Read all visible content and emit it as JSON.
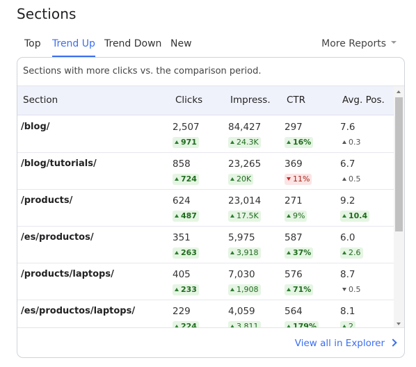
{
  "title": "Sections",
  "tabs": [
    {
      "label": "Top",
      "active": false
    },
    {
      "label": "Trend Up",
      "active": true
    },
    {
      "label": "Trend Down",
      "active": false
    },
    {
      "label": "New",
      "active": false
    }
  ],
  "more_reports_label": "More Reports",
  "description": "Sections with more clicks vs. the comparison period.",
  "columns": {
    "section": "Section",
    "clicks": "Clicks",
    "impressions": "Impress.",
    "ctr": "CTR",
    "position": "Avg. Pos."
  },
  "rows": [
    {
      "section": "/blog/",
      "clicks": "2,507",
      "clicks_delta": "971",
      "impressions": "84,427",
      "impressions_delta": "24.3K",
      "ctr": "297",
      "ctr_delta": "16%",
      "ctr_trend": "up",
      "position": "7.6",
      "position_delta": "0.3",
      "position_trend": "neutral-up"
    },
    {
      "section": "/blog/tutorials/",
      "clicks": "858",
      "clicks_delta": "724",
      "impressions": "23,265",
      "impressions_delta": "20K",
      "ctr": "369",
      "ctr_delta": "11%",
      "ctr_trend": "down",
      "position": "6.7",
      "position_delta": "0.5",
      "position_trend": "neutral-up"
    },
    {
      "section": "/products/",
      "clicks": "624",
      "clicks_delta": "487",
      "impressions": "23,014",
      "impressions_delta": "17.5K",
      "ctr": "271",
      "ctr_delta": "9%",
      "ctr_trend": "up-light",
      "position": "9.2",
      "position_delta": "10.4",
      "position_trend": "up"
    },
    {
      "section": "/es/productos/",
      "clicks": "351",
      "clicks_delta": "263",
      "impressions": "5,975",
      "impressions_delta": "3,918",
      "ctr": "587",
      "ctr_delta": "37%",
      "ctr_trend": "up",
      "position": "6.0",
      "position_delta": "2.6",
      "position_trend": "up-light"
    },
    {
      "section": "/products/laptops/",
      "clicks": "405",
      "clicks_delta": "233",
      "impressions": "7,030",
      "impressions_delta": "1,908",
      "ctr": "576",
      "ctr_delta": "71%",
      "ctr_trend": "up",
      "position": "8.7",
      "position_delta": "0.5",
      "position_trend": "neutral-down"
    },
    {
      "section": "/es/productos/laptops/",
      "clicks": "229",
      "clicks_delta": "224",
      "impressions": "4,059",
      "impressions_delta": "3,811",
      "ctr": "564",
      "ctr_delta": "179%",
      "ctr_trend": "up",
      "position": "8.1",
      "position_delta": "2",
      "position_trend": "up-light"
    }
  ],
  "view_all_label": "View all in Explorer",
  "colors": {
    "accent": "#3b6ef0",
    "up_bg": "#e5f5e3",
    "up_text": "#1f6b1e",
    "down_bg": "#fbe4e4",
    "down_text": "#a3261b",
    "header_bg": "#f0f2fb"
  }
}
